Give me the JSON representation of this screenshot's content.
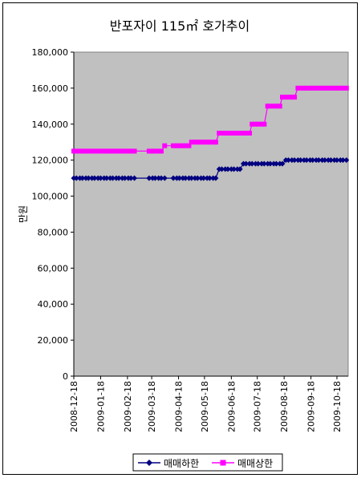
{
  "chart_data": {
    "type": "line",
    "title": "반포자이 115㎡ 호가추이",
    "ylabel": "만원",
    "xlabel": "",
    "ylim": [
      0,
      180000
    ],
    "yticks": [
      0,
      20000,
      40000,
      60000,
      80000,
      100000,
      120000,
      140000,
      160000,
      180000
    ],
    "ytick_labels": [
      "0",
      "20,000",
      "40,000",
      "60,000",
      "80,000",
      "100,000",
      "120,000",
      "140,000",
      "160,000",
      "180,000"
    ],
    "x_tick_labels": [
      "2008-12-18",
      "2009-01-18",
      "2009-02-18",
      "2009-03-18",
      "2009-04-18",
      "2009-05-18",
      "2009-06-18",
      "2009-07-18",
      "2009-08-18",
      "2009-09-18",
      "2009-10-18"
    ],
    "grid": false,
    "legend_position": "bottom",
    "plot_background": "#c0c0c0",
    "series": [
      {
        "name": "매매하한",
        "color": "#000080",
        "marker": "diamond",
        "x": [
          "2008-12-18",
          "2008-12-21",
          "2008-12-25",
          "2008-12-28",
          "2009-01-01",
          "2009-01-04",
          "2009-01-08",
          "2009-01-11",
          "2009-01-15",
          "2009-01-18",
          "2009-01-22",
          "2009-01-25",
          "2009-01-29",
          "2009-02-01",
          "2009-02-05",
          "2009-02-08",
          "2009-02-12",
          "2009-02-15",
          "2009-02-19",
          "2009-02-22",
          "2009-02-26",
          "2009-03-15",
          "2009-03-19",
          "2009-03-22",
          "2009-03-26",
          "2009-03-29",
          "2009-04-02",
          "2009-04-12",
          "2009-04-16",
          "2009-04-19",
          "2009-04-23",
          "2009-04-26",
          "2009-04-30",
          "2009-05-03",
          "2009-05-07",
          "2009-05-10",
          "2009-05-14",
          "2009-05-17",
          "2009-05-21",
          "2009-05-24",
          "2009-05-28",
          "2009-05-31",
          "2009-06-04",
          "2009-06-07",
          "2009-06-11",
          "2009-06-14",
          "2009-06-18",
          "2009-06-21",
          "2009-06-25",
          "2009-06-28",
          "2009-07-02",
          "2009-07-05",
          "2009-07-09",
          "2009-07-12",
          "2009-07-16",
          "2009-07-19",
          "2009-07-23",
          "2009-07-26",
          "2009-07-30",
          "2009-08-02",
          "2009-08-06",
          "2009-08-09",
          "2009-08-13",
          "2009-08-16",
          "2009-08-20",
          "2009-08-23",
          "2009-08-27",
          "2009-08-30",
          "2009-09-03",
          "2009-09-06",
          "2009-09-10",
          "2009-09-13",
          "2009-09-17",
          "2009-09-20",
          "2009-09-24",
          "2009-09-27",
          "2009-10-01",
          "2009-10-04",
          "2009-10-08",
          "2009-10-11",
          "2009-10-15",
          "2009-10-18",
          "2009-10-22",
          "2009-10-25",
          "2009-10-29"
        ],
        "values": [
          110000,
          110000,
          110000,
          110000,
          110000,
          110000,
          110000,
          110000,
          110000,
          110000,
          110000,
          110000,
          110000,
          110000,
          110000,
          110000,
          110000,
          110000,
          110000,
          110000,
          110000,
          110000,
          110000,
          110000,
          110000,
          110000,
          110000,
          110000,
          110000,
          110000,
          110000,
          110000,
          110000,
          110000,
          110000,
          110000,
          110000,
          110000,
          110000,
          110000,
          110000,
          110000,
          115000,
          115000,
          115000,
          115000,
          115000,
          115000,
          115000,
          115000,
          118000,
          118000,
          118000,
          118000,
          118000,
          118000,
          118000,
          118000,
          118000,
          118000,
          118000,
          118000,
          118000,
          118000,
          120000,
          120000,
          120000,
          120000,
          120000,
          120000,
          120000,
          120000,
          120000,
          120000,
          120000,
          120000,
          120000,
          120000,
          120000,
          120000,
          120000,
          120000,
          120000,
          120000,
          120000
        ]
      },
      {
        "name": "매매상한",
        "color": "#ff00ff",
        "marker": "square",
        "x": [
          "2008-12-18",
          "2008-12-21",
          "2008-12-25",
          "2008-12-28",
          "2009-01-01",
          "2009-01-04",
          "2009-01-08",
          "2009-01-11",
          "2009-01-15",
          "2009-01-18",
          "2009-01-22",
          "2009-01-25",
          "2009-01-29",
          "2009-02-01",
          "2009-02-05",
          "2009-02-08",
          "2009-02-12",
          "2009-02-15",
          "2009-02-19",
          "2009-02-22",
          "2009-02-26",
          "2009-03-15",
          "2009-03-19",
          "2009-03-22",
          "2009-03-26",
          "2009-03-29",
          "2009-04-02",
          "2009-04-12",
          "2009-04-16",
          "2009-04-19",
          "2009-04-23",
          "2009-04-26",
          "2009-04-30",
          "2009-05-03",
          "2009-05-07",
          "2009-05-10",
          "2009-05-14",
          "2009-05-17",
          "2009-05-21",
          "2009-05-24",
          "2009-05-28",
          "2009-05-31",
          "2009-06-04",
          "2009-06-07",
          "2009-06-11",
          "2009-06-14",
          "2009-06-18",
          "2009-06-21",
          "2009-06-25",
          "2009-06-28",
          "2009-07-02",
          "2009-07-05",
          "2009-07-09",
          "2009-07-12",
          "2009-07-16",
          "2009-07-19",
          "2009-07-23",
          "2009-07-26",
          "2009-07-30",
          "2009-08-02",
          "2009-08-06",
          "2009-08-09",
          "2009-08-13",
          "2009-08-16",
          "2009-08-20",
          "2009-08-23",
          "2009-08-27",
          "2009-08-30",
          "2009-09-03",
          "2009-09-06",
          "2009-09-10",
          "2009-09-13",
          "2009-09-17",
          "2009-09-20",
          "2009-09-24",
          "2009-09-27",
          "2009-10-01",
          "2009-10-04",
          "2009-10-08",
          "2009-10-11",
          "2009-10-15",
          "2009-10-18",
          "2009-10-22",
          "2009-10-25",
          "2009-10-29"
        ],
        "values": [
          125000,
          125000,
          125000,
          125000,
          125000,
          125000,
          125000,
          125000,
          125000,
          125000,
          125000,
          125000,
          125000,
          125000,
          125000,
          125000,
          125000,
          125000,
          125000,
          125000,
          125000,
          125000,
          125000,
          125000,
          125000,
          125000,
          128000,
          128000,
          128000,
          128000,
          128000,
          128000,
          128000,
          130000,
          130000,
          130000,
          130000,
          130000,
          130000,
          130000,
          130000,
          130000,
          135000,
          135000,
          135000,
          135000,
          135000,
          135000,
          135000,
          135000,
          135000,
          135000,
          135000,
          140000,
          140000,
          140000,
          140000,
          140000,
          150000,
          150000,
          150000,
          150000,
          150000,
          155000,
          155000,
          155000,
          155000,
          155000,
          160000,
          160000,
          160000,
          160000,
          160000,
          160000,
          160000,
          160000,
          160000,
          160000,
          160000,
          160000,
          160000,
          160000,
          160000,
          160000,
          160000
        ]
      }
    ]
  }
}
